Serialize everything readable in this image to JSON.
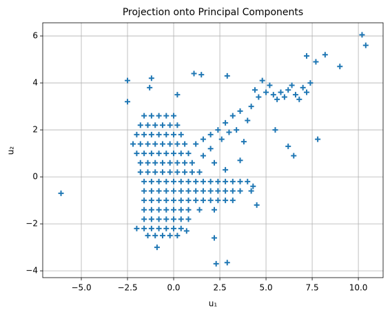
{
  "chart_data": {
    "type": "scatter",
    "title": "Projection onto Principal Components",
    "xlabel": "u₁",
    "ylabel": "u₂",
    "marker": "plus",
    "grid": true,
    "xlim": [
      -7.09,
      11.34
    ],
    "ylim": [
      -4.29,
      6.56
    ],
    "xticks": [
      {
        "value": -5,
        "label": "−5.0"
      },
      {
        "value": -2.5,
        "label": "−2.5"
      },
      {
        "value": 0,
        "label": "0.0"
      },
      {
        "value": 2.5,
        "label": "2.5"
      },
      {
        "value": 5,
        "label": "5.0"
      },
      {
        "value": 7.5,
        "label": "7.5"
      },
      {
        "value": 10,
        "label": "10.0"
      }
    ],
    "yticks": [
      {
        "value": -4,
        "label": "−4"
      },
      {
        "value": -2,
        "label": "−2"
      },
      0,
      2,
      4,
      6
    ],
    "series": [
      {
        "color": "#1f77b4",
        "x": [
          -1.6,
          -1.2,
          -0.8,
          -0.4,
          0.0,
          -1.8,
          -1.4,
          -1.0,
          -0.6,
          -0.2,
          0.2,
          -2.0,
          -1.6,
          -1.2,
          -0.8,
          -0.4,
          0.0,
          0.4,
          -2.2,
          -1.8,
          -1.4,
          -1.0,
          -0.6,
          -0.2,
          0.2,
          0.6,
          -2.0,
          -1.6,
          -1.2,
          -0.8,
          -0.4,
          0.0,
          0.4,
          0.8,
          -1.8,
          -1.4,
          -1.0,
          -0.6,
          -0.2,
          0.2,
          0.6,
          1.0,
          -1.8,
          -1.4,
          -1.0,
          -0.6,
          -0.2,
          0.2,
          0.6,
          1.0,
          1.4,
          -1.6,
          -1.2,
          -0.8,
          -0.4,
          0.0,
          0.4,
          0.8,
          1.2,
          1.6,
          2.0,
          2.4,
          2.8,
          3.2,
          3.6,
          4.0,
          -1.6,
          -1.2,
          -0.8,
          -0.4,
          0.0,
          0.4,
          0.8,
          1.2,
          1.6,
          2.0,
          2.4,
          2.8,
          3.2,
          3.6,
          4.2,
          -1.6,
          -1.2,
          -0.8,
          -0.4,
          0.0,
          0.4,
          0.8,
          1.2,
          1.6,
          2.0,
          2.4,
          2.8,
          3.2,
          -1.6,
          -1.2,
          -0.8,
          -0.4,
          0.0,
          0.4,
          0.8,
          1.4,
          2.2,
          -1.6,
          -1.2,
          -0.8,
          -0.4,
          0.0,
          0.4,
          0.8,
          -2.0,
          -1.6,
          -1.2,
          -0.8,
          -0.4,
          0.0,
          0.4,
          -1.4,
          -1.0,
          -0.6,
          -0.2,
          0.2,
          1.2,
          1.6,
          2.0,
          2.4,
          2.8,
          3.2,
          3.6,
          4.2,
          4.6,
          5.0,
          5.4,
          5.8,
          6.2,
          6.6,
          7.0,
          7.4,
          5.6,
          6.0,
          6.4,
          6.8,
          7.2,
          4.8,
          5.2,
          4.4,
          2.0,
          2.6,
          3.0,
          1.6,
          2.2,
          2.8,
          3.4,
          4.0,
          -6.1,
          10.2,
          10.4,
          9.0,
          7.8,
          6.5,
          6.2,
          5.5,
          2.9,
          2.3,
          2.2,
          -2.5,
          -1.2,
          1.1,
          1.5,
          2.9,
          7.2,
          8.2,
          7.7,
          -2.5,
          -0.9,
          0.7,
          -1.3,
          0.2,
          3.8,
          3.6,
          4.3,
          4.5
        ],
        "values": [
          2.6,
          2.6,
          2.6,
          2.6,
          2.6,
          2.2,
          2.2,
          2.2,
          2.2,
          2.2,
          2.2,
          1.8,
          1.8,
          1.8,
          1.8,
          1.8,
          1.8,
          1.8,
          1.4,
          1.4,
          1.4,
          1.4,
          1.4,
          1.4,
          1.4,
          1.4,
          1.0,
          1.0,
          1.0,
          1.0,
          1.0,
          1.0,
          1.0,
          1.0,
          0.6,
          0.6,
          0.6,
          0.6,
          0.6,
          0.6,
          0.6,
          0.6,
          0.2,
          0.2,
          0.2,
          0.2,
          0.2,
          0.2,
          0.2,
          0.2,
          0.2,
          -0.2,
          -0.2,
          -0.2,
          -0.2,
          -0.2,
          -0.2,
          -0.2,
          -0.2,
          -0.2,
          -0.2,
          -0.2,
          -0.2,
          -0.2,
          -0.2,
          -0.2,
          -0.6,
          -0.6,
          -0.6,
          -0.6,
          -0.6,
          -0.6,
          -0.6,
          -0.6,
          -0.6,
          -0.6,
          -0.6,
          -0.6,
          -0.6,
          -0.6,
          -0.6,
          -1.0,
          -1.0,
          -1.0,
          -1.0,
          -1.0,
          -1.0,
          -1.0,
          -1.0,
          -1.0,
          -1.0,
          -1.0,
          -1.0,
          -1.0,
          -1.4,
          -1.4,
          -1.4,
          -1.4,
          -1.4,
          -1.4,
          -1.4,
          -1.4,
          -1.4,
          -1.8,
          -1.8,
          -1.8,
          -1.8,
          -1.8,
          -1.8,
          -1.8,
          -2.2,
          -2.2,
          -2.2,
          -2.2,
          -2.2,
          -2.2,
          -2.2,
          -2.5,
          -2.5,
          -2.5,
          -2.5,
          -2.5,
          1.4,
          1.6,
          1.8,
          2.0,
          2.3,
          2.6,
          2.8,
          3.0,
          3.4,
          3.6,
          3.5,
          3.6,
          3.7,
          3.5,
          3.8,
          4.0,
          3.3,
          3.4,
          3.9,
          3.3,
          3.6,
          4.1,
          3.9,
          3.7,
          1.2,
          1.6,
          1.9,
          0.9,
          0.6,
          0.3,
          2.0,
          2.4,
          -0.7,
          6.05,
          5.6,
          4.7,
          1.6,
          0.9,
          1.3,
          2.0,
          -3.65,
          -3.7,
          -2.6,
          4.1,
          4.2,
          4.4,
          4.35,
          4.3,
          5.15,
          5.2,
          4.9,
          3.2,
          -3.0,
          -2.3,
          3.8,
          3.5,
          1.5,
          0.7,
          -0.4,
          -1.2
        ]
      }
    ]
  }
}
